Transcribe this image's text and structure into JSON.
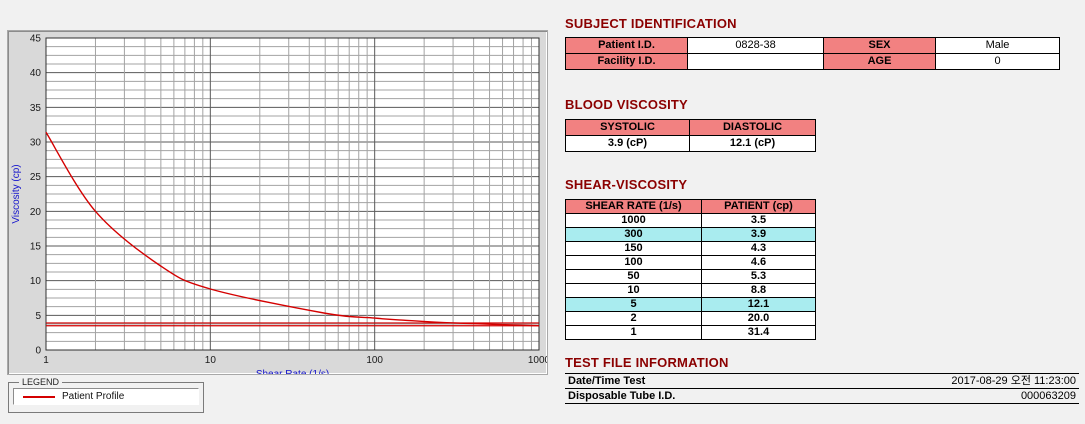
{
  "colors": {
    "page_bg": "#f1f1f1",
    "section_title": "#8b0000",
    "table_header_bg": "#f28181",
    "row_highlight_bg": "#a9ecef",
    "curve_red": "#d40000",
    "axis_label_blue": "#1414cc",
    "chart_panel_bg": "#d9d9d9"
  },
  "chart_data": {
    "type": "line",
    "title": "",
    "xlabel": "Shear Rate (1/s)",
    "ylabel": "Viscosity (cp)",
    "x_scale": "log",
    "xlim": [
      1,
      1000
    ],
    "ylim": [
      0,
      45
    ],
    "x_ticks": [
      1,
      10,
      100,
      1000
    ],
    "y_ticks": [
      0,
      5,
      10,
      15,
      20,
      25,
      30,
      35,
      40,
      45
    ],
    "grid": "dense log-x grid, minor horizontal lines every 1.25, major every 5",
    "series": [
      {
        "name": "Patient Profile",
        "color": "#d40000",
        "x": [
          1,
          2,
          5,
          10,
          50,
          100,
          150,
          300,
          1000
        ],
        "y": [
          31.4,
          20.0,
          12.1,
          8.8,
          5.3,
          4.6,
          4.3,
          3.9,
          3.5
        ]
      }
    ],
    "reference_lines": [
      {
        "y": 3.9,
        "color": "#d40000"
      },
      {
        "y": 3.5,
        "color": "#d40000"
      }
    ],
    "legend": {
      "title": "LEGEND",
      "position": "bottom-left-outside",
      "entries": [
        {
          "label": "Patient Profile",
          "color": "#d40000"
        }
      ]
    }
  },
  "subject": {
    "title": "SUBJECT IDENTIFICATION",
    "rows": [
      [
        "Patient I.D.",
        "0828-38",
        "SEX",
        "Male"
      ],
      [
        "Facility I.D.",
        "",
        "AGE",
        "0"
      ]
    ]
  },
  "blood_viscosity": {
    "title": "BLOOD VISCOSITY",
    "headers": [
      "SYSTOLIC",
      "DIASTOLIC"
    ],
    "values": [
      "3.9 (cP)",
      "12.1 (cP)"
    ]
  },
  "shear_viscosity": {
    "title": "SHEAR-VISCOSITY",
    "headers": [
      "SHEAR RATE (1/s)",
      "PATIENT (cp)"
    ],
    "rows": [
      {
        "rate": "1000",
        "value": "3.5",
        "highlight": false
      },
      {
        "rate": "300",
        "value": "3.9",
        "highlight": true
      },
      {
        "rate": "150",
        "value": "4.3",
        "highlight": false
      },
      {
        "rate": "100",
        "value": "4.6",
        "highlight": false
      },
      {
        "rate": "50",
        "value": "5.3",
        "highlight": false
      },
      {
        "rate": "10",
        "value": "8.8",
        "highlight": false
      },
      {
        "rate": "5",
        "value": "12.1",
        "highlight": true
      },
      {
        "rate": "2",
        "value": "20.0",
        "highlight": false
      },
      {
        "rate": "1",
        "value": "31.4",
        "highlight": false
      }
    ]
  },
  "test_file": {
    "title": "TEST FILE INFORMATION",
    "rows": [
      {
        "label": "Date/Time Test",
        "value": "2017-08-29  오전 11:23:00"
      },
      {
        "label": "Disposable Tube I.D.",
        "value": "000063209"
      }
    ]
  }
}
